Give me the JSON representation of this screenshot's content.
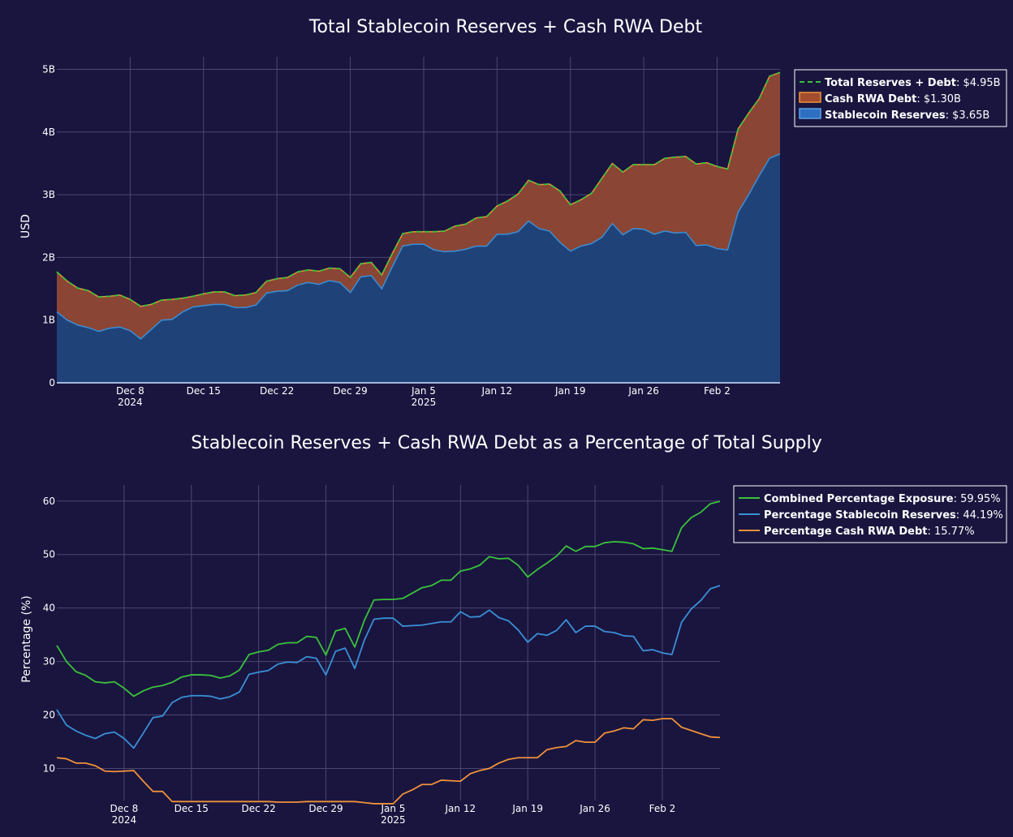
{
  "chart_data": [
    {
      "type": "area",
      "title": "Total Stablecoin Reserves + Cash RWA Debt",
      "xlabel": "",
      "ylabel": "USD",
      "xlim": [
        "2024-12-01",
        "2025-02-08"
      ],
      "ylim": [
        0,
        5200000000
      ],
      "yticks": [
        0,
        1000000000,
        2000000000,
        3000000000,
        4000000000,
        5000000000
      ],
      "ytick_labels": [
        "0",
        "1B",
        "2B",
        "3B",
        "4B",
        "5B"
      ],
      "xticks": [
        "2024-12-08",
        "2024-12-15",
        "2024-12-22",
        "2024-12-29",
        "2025-01-05",
        "2025-01-12",
        "2025-01-19",
        "2025-01-26",
        "2025-02-02"
      ],
      "xtick_labels": [
        [
          "Dec 8",
          "2024"
        ],
        [
          "Dec 15"
        ],
        [
          "Dec 22"
        ],
        [
          "Dec 29"
        ],
        [
          "Jan 5",
          "2025"
        ],
        [
          "Jan 12"
        ],
        [
          "Jan 19"
        ],
        [
          "Jan 26"
        ],
        [
          "Feb 2"
        ]
      ],
      "stacked": true,
      "grid": true,
      "legend_position": "top-right",
      "x": [
        "2024-12-01",
        "2024-12-02",
        "2024-12-03",
        "2024-12-04",
        "2024-12-05",
        "2024-12-06",
        "2024-12-07",
        "2024-12-08",
        "2024-12-09",
        "2024-12-10",
        "2024-12-11",
        "2024-12-12",
        "2024-12-13",
        "2024-12-14",
        "2024-12-15",
        "2024-12-16",
        "2024-12-17",
        "2024-12-18",
        "2024-12-19",
        "2024-12-20",
        "2024-12-21",
        "2024-12-22",
        "2024-12-23",
        "2024-12-24",
        "2024-12-25",
        "2024-12-26",
        "2024-12-27",
        "2024-12-28",
        "2024-12-29",
        "2024-12-30",
        "2024-12-31",
        "2025-01-01",
        "2025-01-02",
        "2025-01-03",
        "2025-01-04",
        "2025-01-05",
        "2025-01-06",
        "2025-01-07",
        "2025-01-08",
        "2025-01-09",
        "2025-01-10",
        "2025-01-11",
        "2025-01-12",
        "2025-01-13",
        "2025-01-14",
        "2025-01-15",
        "2025-01-16",
        "2025-01-17",
        "2025-01-18",
        "2025-01-19",
        "2025-01-20",
        "2025-01-21",
        "2025-01-22",
        "2025-01-23",
        "2025-01-24",
        "2025-01-25",
        "2025-01-26",
        "2025-01-27",
        "2025-01-28",
        "2025-01-29",
        "2025-01-30",
        "2025-01-31",
        "2025-02-01",
        "2025-02-02",
        "2025-02-03",
        "2025-02-04",
        "2025-02-05",
        "2025-02-06",
        "2025-02-07",
        "2025-02-08"
      ],
      "series": [
        {
          "name": "Stablecoin Reserves",
          "legend_label": "Stablecoin Reserves",
          "legend_value": "$3.65B",
          "color": "#2f6fc0",
          "values": [
            1.13,
            1.0,
            0.92,
            0.88,
            0.82,
            0.87,
            0.89,
            0.83,
            0.7,
            0.85,
            1.0,
            1.01,
            1.13,
            1.21,
            1.23,
            1.25,
            1.25,
            1.2,
            1.2,
            1.24,
            1.43,
            1.46,
            1.47,
            1.56,
            1.6,
            1.57,
            1.63,
            1.6,
            1.44,
            1.69,
            1.71,
            1.5,
            1.85,
            2.18,
            2.21,
            2.21,
            2.12,
            2.09,
            2.1,
            2.13,
            2.18,
            2.18,
            2.37,
            2.37,
            2.41,
            2.58,
            2.46,
            2.42,
            2.24,
            2.1,
            2.18,
            2.22,
            2.32,
            2.54,
            2.36,
            2.46,
            2.45,
            2.37,
            2.42,
            2.39,
            2.4,
            2.19,
            2.2,
            2.14,
            2.12,
            2.72,
            3.0,
            3.3,
            3.58,
            3.65
          ]
        },
        {
          "name": "Cash RWA Debt",
          "legend_label": "Cash RWA Debt",
          "legend_value": "$1.30B",
          "color": "#a14d2e",
          "values": [
            0.64,
            0.62,
            0.59,
            0.59,
            0.55,
            0.51,
            0.51,
            0.5,
            0.52,
            0.4,
            0.32,
            0.32,
            0.22,
            0.17,
            0.19,
            0.2,
            0.2,
            0.19,
            0.2,
            0.2,
            0.19,
            0.2,
            0.21,
            0.21,
            0.2,
            0.21,
            0.2,
            0.22,
            0.24,
            0.21,
            0.21,
            0.22,
            0.21,
            0.2,
            0.2,
            0.2,
            0.29,
            0.33,
            0.4,
            0.4,
            0.45,
            0.47,
            0.45,
            0.53,
            0.6,
            0.65,
            0.7,
            0.75,
            0.82,
            0.74,
            0.74,
            0.8,
            0.94,
            0.96,
            1.0,
            1.02,
            1.03,
            1.11,
            1.16,
            1.21,
            1.21,
            1.3,
            1.31,
            1.31,
            1.29,
            1.33,
            1.3,
            1.23,
            1.31,
            1.3
          ]
        },
        {
          "name": "Total Reserves + Debt",
          "legend_label": "Total Reserves + Debt",
          "legend_value": "$4.95B",
          "color": "#3ac23a",
          "dash": true,
          "values": [
            1.77,
            1.62,
            1.51,
            1.47,
            1.37,
            1.38,
            1.4,
            1.33,
            1.22,
            1.25,
            1.32,
            1.33,
            1.35,
            1.38,
            1.42,
            1.45,
            1.45,
            1.39,
            1.4,
            1.44,
            1.62,
            1.66,
            1.68,
            1.77,
            1.8,
            1.78,
            1.83,
            1.82,
            1.68,
            1.9,
            1.92,
            1.72,
            2.06,
            2.38,
            2.41,
            2.41,
            2.41,
            2.42,
            2.5,
            2.53,
            2.63,
            2.65,
            2.82,
            2.9,
            3.01,
            3.23,
            3.16,
            3.17,
            3.06,
            2.84,
            2.92,
            3.02,
            3.26,
            3.5,
            3.36,
            3.48,
            3.48,
            3.48,
            3.58,
            3.6,
            3.61,
            3.49,
            3.51,
            3.45,
            3.41,
            4.05,
            4.3,
            4.53,
            4.89,
            4.95
          ]
        }
      ],
      "value_unit": "billions USD"
    },
    {
      "type": "line",
      "title": "Stablecoin Reserves + Cash RWA Debt as a Percentage of Total Supply",
      "xlabel": "",
      "ylabel": "Percentage (%)",
      "xlim": [
        "2024-12-01",
        "2025-02-08"
      ],
      "ylim": [
        4,
        63
      ],
      "yticks": [
        10,
        20,
        30,
        40,
        50,
        60
      ],
      "ytick_labels": [
        "10",
        "20",
        "30",
        "40",
        "50",
        "60"
      ],
      "xticks": [
        "2024-12-08",
        "2024-12-15",
        "2024-12-22",
        "2024-12-29",
        "2025-01-05",
        "2025-01-12",
        "2025-01-19",
        "2025-01-26",
        "2025-02-02"
      ],
      "xtick_labels": [
        [
          "Dec 8",
          "2024"
        ],
        [
          "Dec 15"
        ],
        [
          "Dec 22"
        ],
        [
          "Dec 29"
        ],
        [
          "Jan 5",
          "2025"
        ],
        [
          "Jan 12"
        ],
        [
          "Jan 19"
        ],
        [
          "Jan 26"
        ],
        [
          "Feb 2"
        ]
      ],
      "grid": true,
      "legend_position": "top-right",
      "x": [
        "2024-12-01",
        "2024-12-02",
        "2024-12-03",
        "2024-12-04",
        "2024-12-05",
        "2024-12-06",
        "2024-12-07",
        "2024-12-08",
        "2024-12-09",
        "2024-12-10",
        "2024-12-11",
        "2024-12-12",
        "2024-12-13",
        "2024-12-14",
        "2024-12-15",
        "2024-12-16",
        "2024-12-17",
        "2024-12-18",
        "2024-12-19",
        "2024-12-20",
        "2024-12-21",
        "2024-12-22",
        "2024-12-23",
        "2024-12-24",
        "2024-12-25",
        "2024-12-26",
        "2024-12-27",
        "2024-12-28",
        "2024-12-29",
        "2024-12-30",
        "2024-12-31",
        "2025-01-01",
        "2025-01-02",
        "2025-01-03",
        "2025-01-04",
        "2025-01-05",
        "2025-01-06",
        "2025-01-07",
        "2025-01-08",
        "2025-01-09",
        "2025-01-10",
        "2025-01-11",
        "2025-01-12",
        "2025-01-13",
        "2025-01-14",
        "2025-01-15",
        "2025-01-16",
        "2025-01-17",
        "2025-01-18",
        "2025-01-19",
        "2025-01-20",
        "2025-01-21",
        "2025-01-22",
        "2025-01-23",
        "2025-01-24",
        "2025-01-25",
        "2025-01-26",
        "2025-01-27",
        "2025-01-28",
        "2025-01-29",
        "2025-01-30",
        "2025-01-31",
        "2025-02-01",
        "2025-02-02",
        "2025-02-03",
        "2025-02-04",
        "2025-02-05",
        "2025-02-06",
        "2025-02-07",
        "2025-02-08"
      ],
      "series": [
        {
          "name": "Combined Percentage Exposure",
          "legend_label": "Combined Percentage Exposure",
          "legend_value": "59.95%",
          "color": "#3ac23a",
          "values": [
            33.0,
            30.0,
            28.1,
            27.4,
            26.2,
            26.0,
            26.2,
            25.0,
            23.5,
            24.5,
            25.2,
            25.5,
            26.1,
            27.1,
            27.5,
            27.5,
            27.4,
            26.9,
            27.3,
            28.4,
            31.3,
            31.8,
            32.1,
            33.2,
            33.5,
            33.5,
            34.7,
            34.5,
            31.2,
            35.7,
            36.2,
            32.7,
            37.7,
            41.5,
            41.6,
            41.6,
            41.8,
            42.8,
            43.8,
            44.2,
            45.2,
            45.2,
            46.9,
            47.3,
            48.0,
            49.6,
            49.2,
            49.3,
            48.0,
            45.8,
            47.2,
            48.4,
            49.7,
            51.6,
            50.6,
            51.5,
            51.5,
            52.2,
            52.4,
            52.3,
            52.0,
            51.1,
            51.2,
            50.9,
            50.6,
            55.0,
            56.9,
            57.9,
            59.5,
            59.95
          ]
        },
        {
          "name": "Percentage Stablecoin Reserves",
          "legend_label": "Percentage Stablecoin Reserves",
          "legend_value": "44.19%",
          "color": "#3a8fd6",
          "values": [
            21.0,
            18.1,
            17.0,
            16.2,
            15.6,
            16.5,
            16.8,
            15.6,
            13.8,
            16.6,
            19.5,
            19.8,
            22.3,
            23.3,
            23.6,
            23.6,
            23.5,
            23.0,
            23.4,
            24.3,
            27.6,
            28.0,
            28.3,
            29.5,
            29.9,
            29.8,
            30.9,
            30.6,
            27.5,
            31.9,
            32.5,
            28.7,
            34.0,
            37.9,
            38.1,
            38.1,
            36.6,
            36.7,
            36.8,
            37.1,
            37.4,
            37.4,
            39.3,
            38.3,
            38.4,
            39.6,
            38.2,
            37.6,
            35.9,
            33.6,
            35.2,
            34.9,
            35.8,
            37.8,
            35.4,
            36.6,
            36.6,
            35.6,
            35.4,
            34.8,
            34.7,
            32.0,
            32.2,
            31.6,
            31.3,
            37.3,
            39.8,
            41.4,
            43.6,
            44.19
          ]
        },
        {
          "name": "Percentage Cash RWA Debt",
          "legend_label": "Percentage Cash RWA Debt",
          "legend_value": "15.77%",
          "color": "#f0913a",
          "values": [
            12.0,
            11.8,
            11.0,
            11.0,
            10.5,
            9.5,
            9.4,
            9.5,
            9.6,
            7.6,
            5.7,
            5.7,
            3.8,
            3.8,
            3.8,
            3.8,
            3.8,
            3.8,
            3.8,
            3.8,
            3.8,
            3.8,
            3.8,
            3.7,
            3.7,
            3.7,
            3.8,
            3.8,
            3.8,
            3.8,
            3.8,
            3.8,
            3.6,
            3.4,
            3.4,
            3.4,
            5.2,
            6.0,
            7.0,
            7.0,
            7.8,
            7.7,
            7.6,
            9.0,
            9.6,
            10.0,
            11.0,
            11.7,
            12.0,
            12.0,
            12.0,
            13.5,
            13.9,
            14.1,
            15.2,
            14.9,
            14.9,
            16.6,
            17.0,
            17.6,
            17.4,
            19.1,
            19.0,
            19.3,
            19.3,
            17.7,
            17.1,
            16.5,
            15.9,
            15.77
          ]
        }
      ]
    }
  ]
}
